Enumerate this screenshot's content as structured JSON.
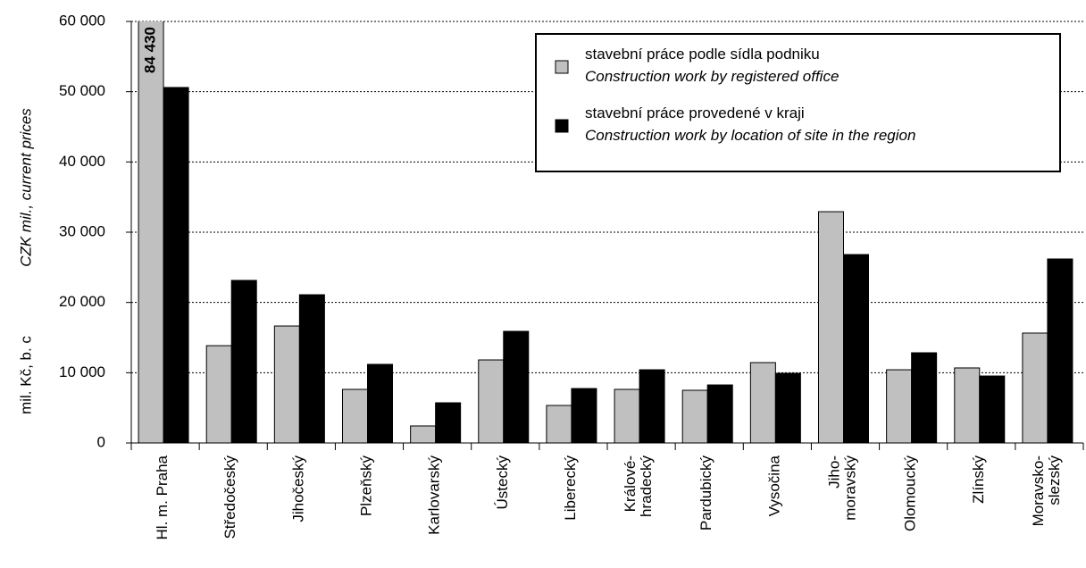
{
  "chart_data": {
    "type": "bar",
    "y_label": "mil. Kč,  b. c",
    "y_label_en": "CZK mil., current prices",
    "categories": [
      "Hl. m. Praha",
      "Středočeský",
      "Jihočeský",
      "Plzeňský",
      "Karlovarský",
      "Ústecký",
      "Liberecký",
      "Králové-\nhradecký",
      "Pardubický",
      "Vysočina",
      "Jiho-\nmoravský",
      "Olomoucký",
      "Zlínský",
      "Moravsko-\nslezský"
    ],
    "series": [
      {
        "name": "stavební práce podle sídla podniku\nConstruction work by registered office",
        "color": "#c0c0c0",
        "values": [
          84430,
          13850,
          16650,
          7630,
          2420,
          11820,
          5340,
          7630,
          7500,
          11440,
          32920,
          10420,
          10680,
          15640
        ],
        "value_labels": [
          "84 430",
          null,
          null,
          null,
          null,
          null,
          null,
          null,
          null,
          null,
          null,
          null,
          null,
          null
        ]
      },
      {
        "name": "stavební práce provedené v kraji\nConstruction work by location of site in the region",
        "color": "#000000",
        "values": [
          50600,
          23140,
          21100,
          11190,
          5720,
          15890,
          7750,
          10420,
          8260,
          9920,
          26820,
          12840,
          9530,
          26190
        ]
      }
    ],
    "ylim": [
      0,
      60000
    ],
    "yticks": [
      0,
      {
        "value": 10000,
        "label": "10 000"
      },
      {
        "value": 20000,
        "label": "20 000"
      },
      {
        "value": 30000,
        "label": "30 000"
      },
      {
        "value": 40000,
        "label": "40 000"
      },
      {
        "value": 50000,
        "label": "50 000"
      },
      {
        "value": 60000,
        "label": "60 000"
      }
    ],
    "grid": true,
    "legend": "top-right"
  }
}
